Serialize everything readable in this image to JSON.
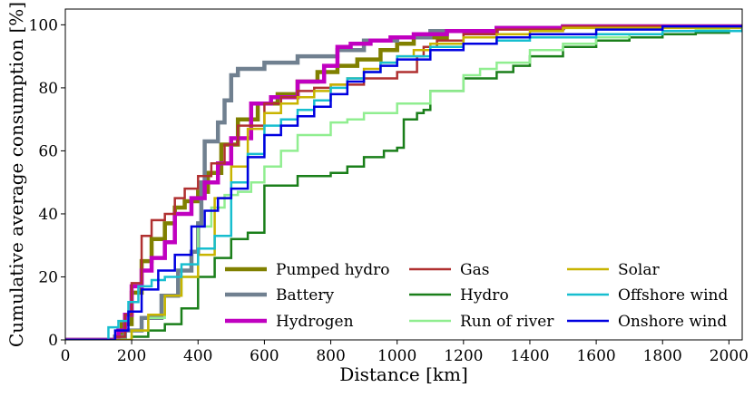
{
  "chart_data": {
    "type": "line",
    "title": "",
    "xlabel": "Distance [km]",
    "ylabel": "Cumulative average consumption [%]",
    "xlim": [
      0,
      2040
    ],
    "ylim": [
      0,
      105
    ],
    "xticks": [
      "0",
      "200",
      "400",
      "600",
      "800",
      "1000",
      "1200",
      "1400",
      "1600",
      "1800",
      "2000"
    ],
    "yticks": [
      "0",
      "20",
      "40",
      "60",
      "80",
      "100"
    ],
    "legend_position": "lower-right",
    "series": [
      {
        "name": "Pumped hydro",
        "color": "#808000",
        "width": 4.5,
        "x": [
          0,
          110,
          150,
          170,
          200,
          230,
          260,
          300,
          330,
          360,
          400,
          430,
          470,
          520,
          580,
          640,
          700,
          760,
          820,
          880,
          950,
          1000,
          1050,
          1150,
          1300,
          1500,
          2040
        ],
        "y": [
          0,
          0,
          1,
          5,
          15,
          25,
          32,
          37,
          42,
          44,
          47,
          53,
          62,
          70,
          75,
          78,
          82,
          85,
          87,
          89,
          92,
          94,
          96,
          98,
          99,
          99.5,
          100
        ]
      },
      {
        "name": "Battery",
        "color": "#708090",
        "width": 4.5,
        "x": [
          0,
          110,
          150,
          180,
          230,
          290,
          340,
          380,
          400,
          410,
          420,
          460,
          480,
          500,
          520,
          600,
          700,
          820,
          900,
          1000,
          1100,
          1300,
          1500,
          2040
        ],
        "y": [
          0,
          0,
          1,
          3,
          7,
          14,
          22,
          28,
          37,
          50,
          63,
          69,
          76,
          84,
          86,
          88,
          90,
          92,
          95,
          96,
          98,
          99,
          99.5,
          100
        ]
      },
      {
        "name": "Hydrogen",
        "color": "#c000c0",
        "width": 4.5,
        "x": [
          0,
          110,
          160,
          180,
          200,
          230,
          260,
          300,
          330,
          380,
          420,
          460,
          500,
          560,
          620,
          700,
          780,
          820,
          860,
          920,
          980,
          1050,
          1150,
          1300,
          1500,
          2040
        ],
        "y": [
          0,
          0,
          3,
          8,
          17,
          22,
          26,
          31,
          40,
          45,
          50,
          56,
          64,
          75,
          77,
          82,
          87,
          93,
          94,
          95,
          96,
          97,
          98,
          99,
          99.5,
          100
        ]
      },
      {
        "name": "Gas",
        "color": "#b03030",
        "width": 2.5,
        "x": [
          0,
          110,
          150,
          180,
          200,
          230,
          260,
          300,
          330,
          360,
          400,
          440,
          480,
          520,
          600,
          650,
          700,
          750,
          800,
          900,
          1000,
          1060,
          1080,
          1120,
          1200,
          1300,
          1500,
          2040
        ],
        "y": [
          0,
          0,
          1,
          8,
          18,
          33,
          38,
          40,
          45,
          48,
          52,
          56,
          62,
          68,
          75,
          77,
          79,
          80,
          81,
          83,
          85,
          90,
          93,
          95,
          97,
          98.5,
          99.5,
          100
        ]
      },
      {
        "name": "Hydro",
        "color": "#1a7f1a",
        "width": 2.5,
        "x": [
          0,
          110,
          150,
          200,
          250,
          300,
          350,
          400,
          450,
          500,
          550,
          600,
          700,
          800,
          850,
          900,
          960,
          1000,
          1020,
          1060,
          1080,
          1100,
          1200,
          1300,
          1350,
          1400,
          1500,
          1600,
          1700,
          1800,
          1900,
          2000,
          2040
        ],
        "y": [
          0,
          0,
          0,
          1,
          3,
          5,
          10,
          20,
          26,
          32,
          34,
          49,
          52,
          53,
          55,
          58,
          60,
          61,
          70,
          72,
          73,
          79,
          83,
          85,
          87,
          90,
          93,
          95,
          96,
          97,
          97.5,
          98,
          98
        ]
      },
      {
        "name": "Run of river",
        "color": "#90ee90",
        "width": 2.5,
        "x": [
          0,
          110,
          150,
          200,
          250,
          300,
          350,
          400,
          440,
          480,
          520,
          560,
          600,
          650,
          700,
          800,
          850,
          900,
          1000,
          1100,
          1200,
          1250,
          1300,
          1400,
          1500,
          1600,
          1700,
          1800,
          1900,
          2000,
          2040
        ],
        "y": [
          0,
          0,
          0,
          3,
          7,
          14,
          20,
          36,
          42,
          46,
          47,
          50,
          55,
          60,
          65,
          69,
          70,
          72,
          75,
          79,
          84,
          86,
          88,
          92,
          94,
          96,
          97,
          98,
          98.5,
          99,
          99
        ]
      },
      {
        "name": "Solar",
        "color": "#c8b400",
        "width": 2.5,
        "x": [
          0,
          110,
          150,
          200,
          250,
          300,
          350,
          400,
          450,
          500,
          550,
          600,
          650,
          700,
          750,
          800,
          850,
          900,
          950,
          1000,
          1050,
          1100,
          1200,
          1300,
          1400,
          1500,
          2040
        ],
        "y": [
          0,
          0,
          0,
          3,
          8,
          14,
          20,
          27,
          45,
          55,
          67,
          72,
          75,
          77,
          79,
          81,
          83,
          86,
          88,
          90,
          92,
          94,
          96,
          97,
          98,
          99,
          100
        ]
      },
      {
        "name": "Offshore wind",
        "color": "#17becf",
        "width": 2.5,
        "x": [
          0,
          110,
          130,
          160,
          190,
          220,
          260,
          300,
          350,
          400,
          450,
          500,
          550,
          600,
          650,
          700,
          750,
          800,
          850,
          900,
          950,
          1000,
          1100,
          1200,
          1300,
          1400,
          1600,
          1800,
          2040
        ],
        "y": [
          0,
          0,
          4,
          6,
          12,
          17,
          19,
          20,
          24,
          29,
          33,
          50,
          59,
          68,
          70,
          73,
          76,
          80,
          83,
          85,
          88,
          90,
          93,
          94,
          95,
          96,
          97,
          98,
          99
        ]
      },
      {
        "name": "Onshore wind",
        "color": "#0000e0",
        "width": 2.5,
        "x": [
          0,
          110,
          150,
          190,
          230,
          280,
          330,
          380,
          420,
          460,
          500,
          550,
          600,
          650,
          700,
          750,
          800,
          850,
          900,
          950,
          1000,
          1100,
          1200,
          1300,
          1400,
          1600,
          1800,
          2040
        ],
        "y": [
          0,
          0,
          3,
          9,
          16,
          22,
          27,
          36,
          41,
          45,
          48,
          58,
          65,
          68,
          71,
          74,
          78,
          82,
          85,
          87,
          89,
          92,
          94,
          96,
          97,
          98.5,
          99.5,
          100
        ]
      }
    ]
  }
}
